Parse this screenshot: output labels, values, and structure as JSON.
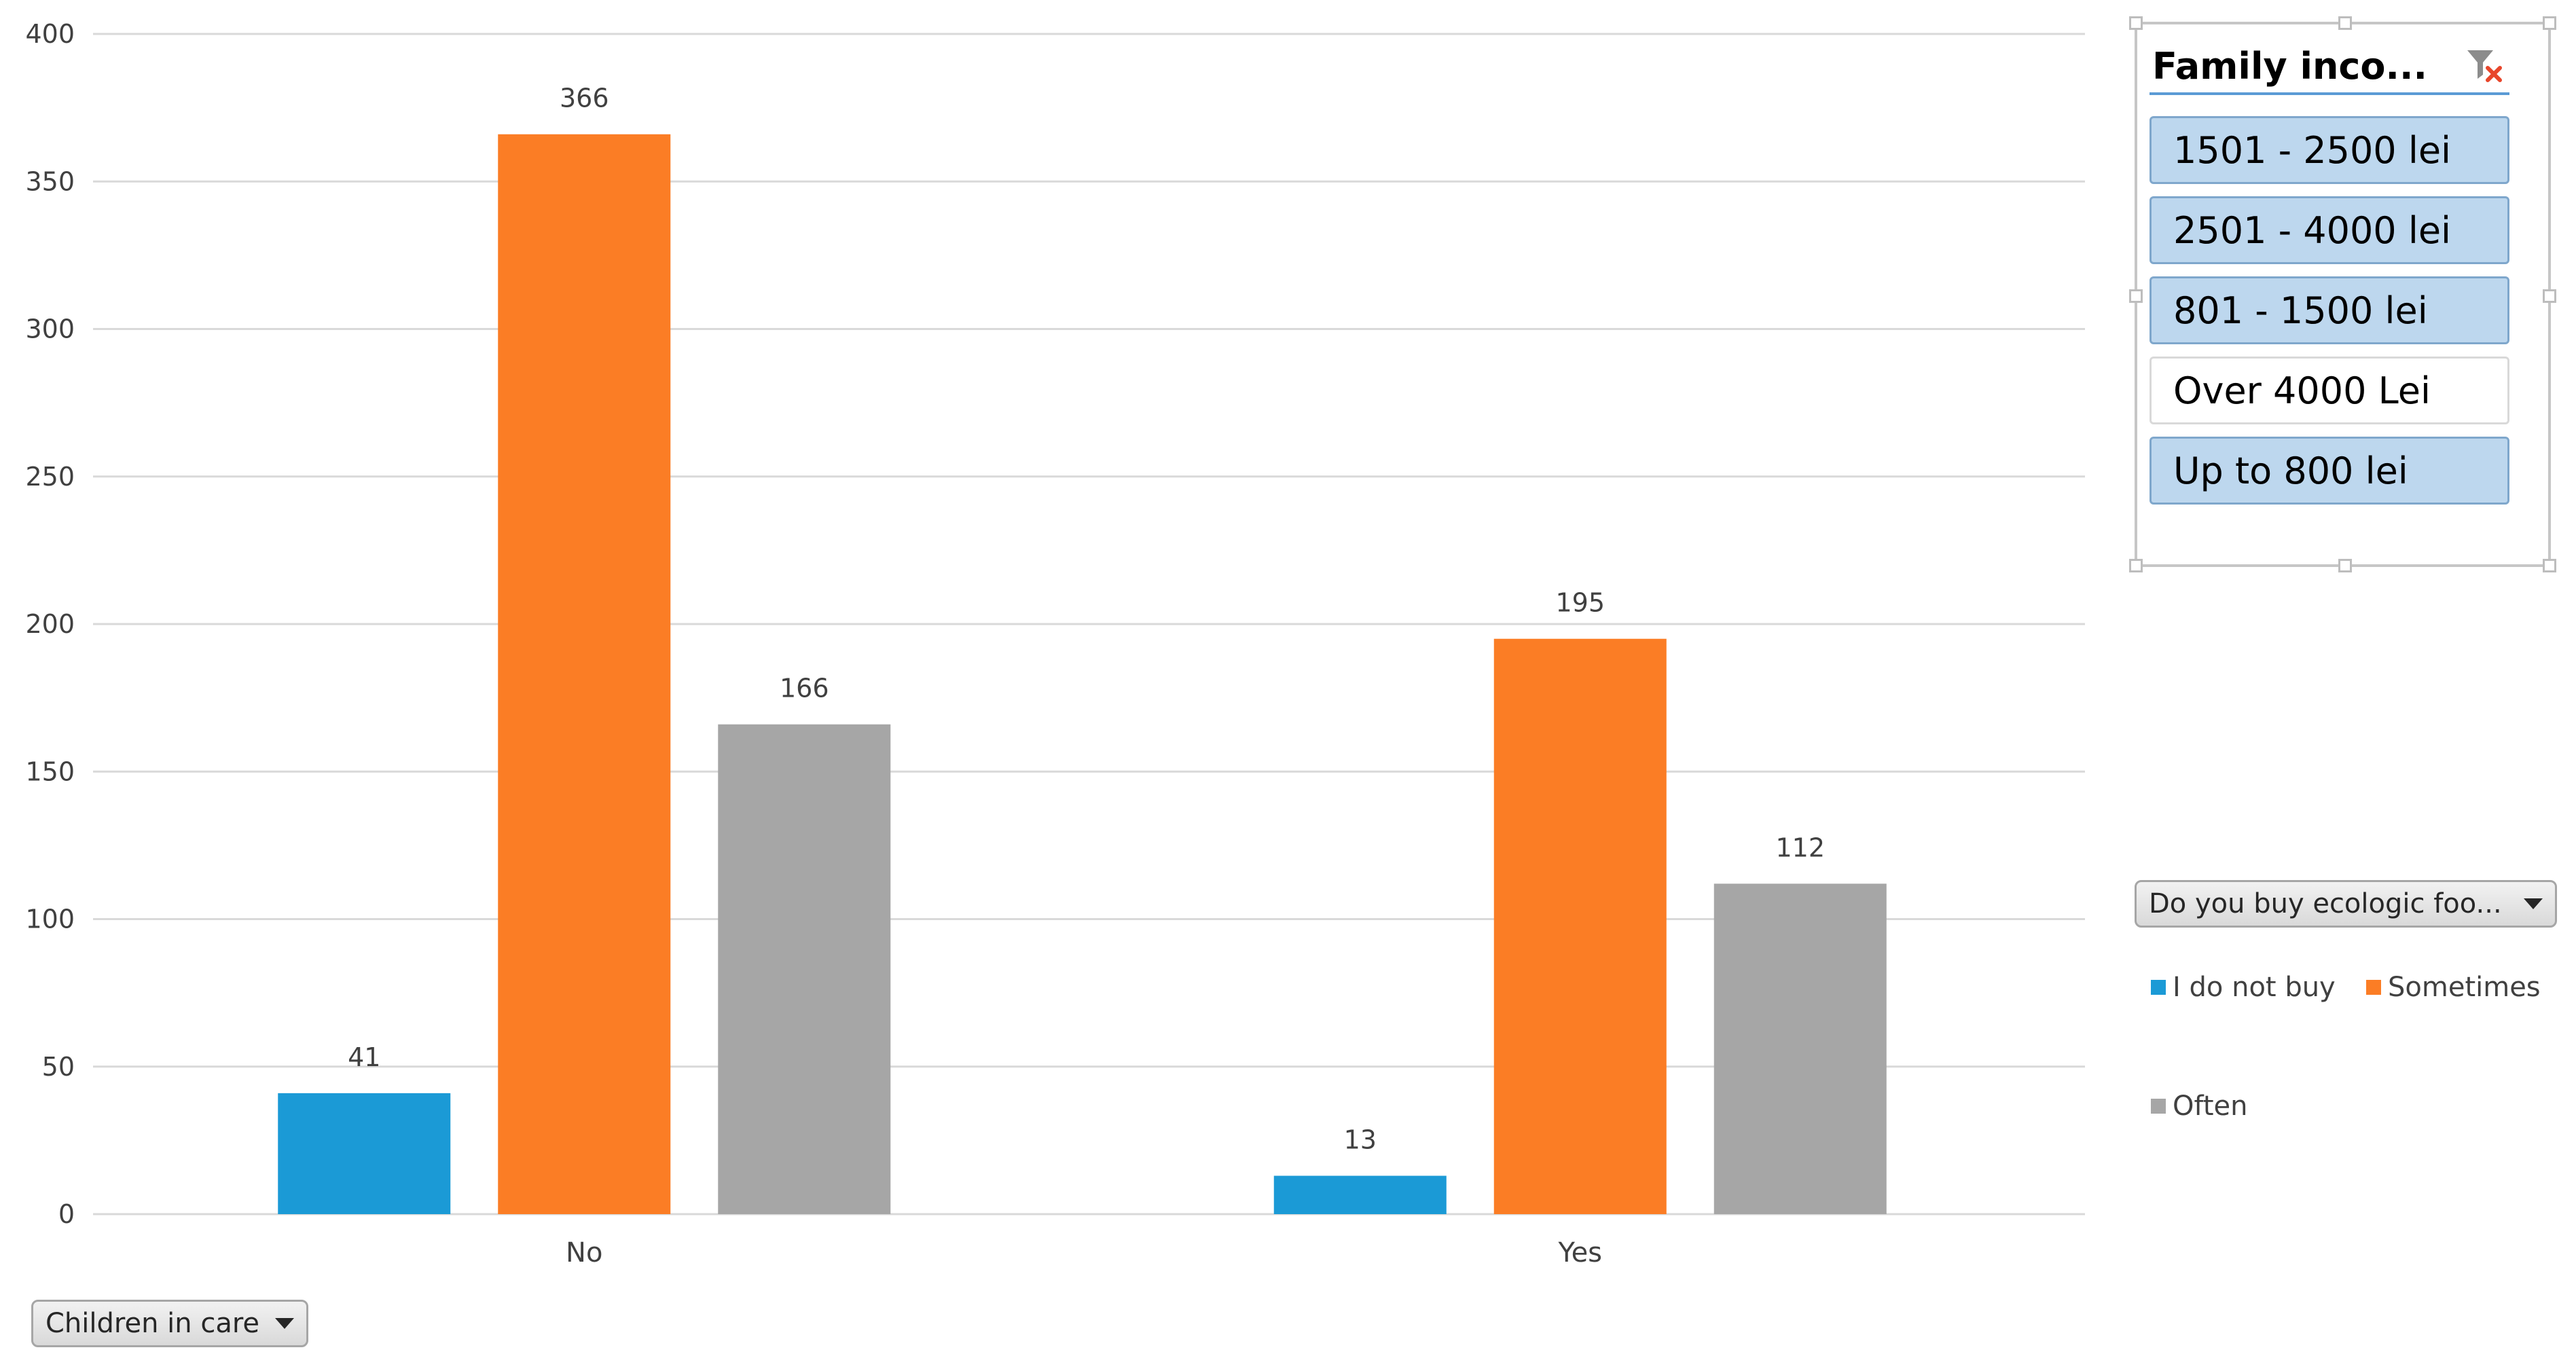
{
  "chart_data": {
    "type": "bar",
    "categories": [
      "No",
      "Yes"
    ],
    "series": [
      {
        "name": "I do not buy",
        "values": [
          41,
          13
        ],
        "color": "#1b9ad6"
      },
      {
        "name": "Sometimes",
        "values": [
          366,
          195
        ],
        "color": "#fb7d25"
      },
      {
        "name": "Often",
        "values": [
          166,
          112
        ],
        "color": "#a6a6a6"
      }
    ],
    "ylim": [
      0,
      400
    ],
    "yticks": [
      0,
      50,
      100,
      150,
      200,
      250,
      300,
      350,
      400
    ],
    "title": "",
    "xlabel": "",
    "ylabel": "",
    "grid": true,
    "legend": "right",
    "data_labels": true
  },
  "slicer": {
    "title": "Family inco...",
    "clear_icon": "clear-filter-icon",
    "items": [
      {
        "label": "1501 - 2500 lei",
        "selected": true
      },
      {
        "label": "2501 - 4000 lei",
        "selected": true
      },
      {
        "label": "801 - 1500 lei",
        "selected": true
      },
      {
        "label": "Over 4000 Lei",
        "selected": false
      },
      {
        "label": "Up to 800 lei",
        "selected": true
      }
    ]
  },
  "legend_field_button": {
    "label": "Do you buy ecologic foo...",
    "icon": "chevron-down-icon"
  },
  "axis_field_button": {
    "label": "Children in care",
    "icon": "chevron-down-icon"
  },
  "legend": {
    "items": [
      {
        "label": "I do not buy",
        "color": "#1b9ad6"
      },
      {
        "label": "Sometimes",
        "color": "#fb7d25"
      },
      {
        "label": "Often",
        "color": "#a6a6a6"
      }
    ]
  }
}
